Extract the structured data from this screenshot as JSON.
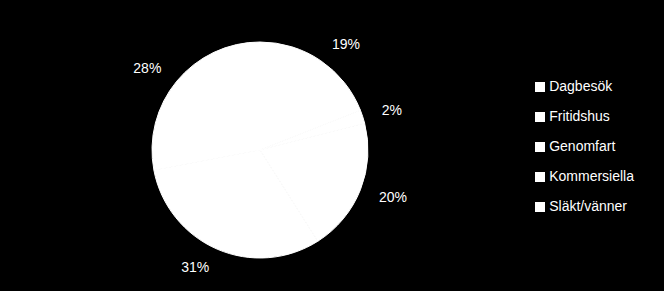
{
  "chart_data": {
    "type": "pie",
    "categories": [
      "Kommersiella",
      "Fritidshus",
      "Släkt/vänner",
      "Dagbesök",
      "Genomfart"
    ],
    "values": [
      19,
      2,
      20,
      31,
      28
    ],
    "value_labels": [
      "19%",
      "2%",
      "20%",
      "31%",
      "28%"
    ],
    "colors": [
      "#ffffff",
      "#ffffff",
      "#ffffff",
      "#ffffff",
      "#ffffff"
    ],
    "data_labels": true,
    "legend": "right"
  }
}
